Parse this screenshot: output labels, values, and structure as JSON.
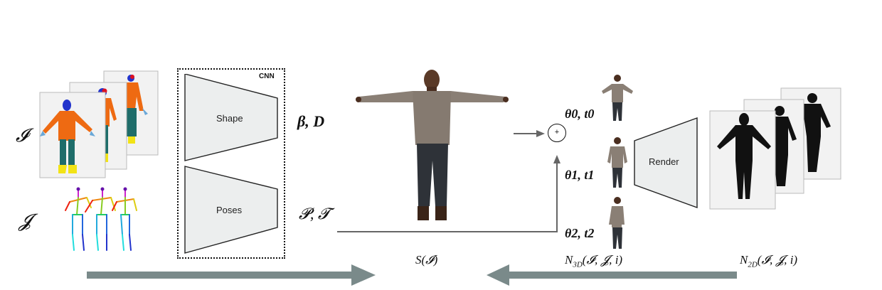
{
  "inputs": {
    "image_symbol": "𝓘",
    "joints_symbol": "𝓙"
  },
  "cnn": {
    "label": "CNN",
    "shape_label": "Shape",
    "poses_label": "Poses"
  },
  "outputs": {
    "shape_params": "β, D",
    "pose_params": "𝓟, 𝓣"
  },
  "frames": [
    {
      "theta": "θ0, t0"
    },
    {
      "theta": "θ1, t1"
    },
    {
      "theta": "θ2, t2"
    }
  ],
  "render": {
    "label": "Render",
    "plus": "+"
  },
  "losses": {
    "s": "S(𝓘)",
    "n3d": "N3D(𝓘, 𝓙, i)",
    "n2d": "N2D(𝓘, 𝓙, i)"
  },
  "colors": {
    "arrow_big": "#7a8a8a",
    "arrow_thin": "#666666",
    "trapezoid_fill": "#eceeee",
    "skin": "#3a2a20",
    "shirt": "#8a7f75",
    "jeans": "#2e3238",
    "seg_orange": "#ee6a12",
    "seg_teal": "#1f6d6a",
    "seg_blue": "#2233cc",
    "seg_yellow": "#f2e316",
    "seg_red": "#dd1122"
  }
}
